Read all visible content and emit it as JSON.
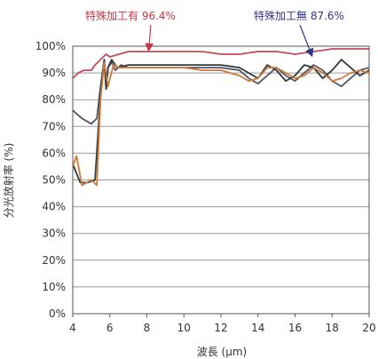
{
  "chart_data": {
    "type": "line",
    "title": "",
    "xlabel": "波長 (μm)",
    "ylabel": "分光放射率 (%)",
    "xlim": [
      4,
      20
    ],
    "ylim": [
      0,
      100
    ],
    "x_ticks": [
      "4",
      "6",
      "8",
      "10",
      "12",
      "14",
      "16",
      "18",
      "20"
    ],
    "y_ticks": [
      "0%",
      "10%",
      "20%",
      "30%",
      "40%",
      "50%",
      "60%",
      "70%",
      "80%",
      "90%",
      "100%"
    ],
    "grid": true,
    "annotations": [
      {
        "text": "特殊加工有 96.4%",
        "color": "#cc3344",
        "target": [
          8.1,
          98
        ]
      },
      {
        "text": "特殊加工無 87.6%",
        "color": "#333388",
        "target": [
          16.9,
          96
        ]
      }
    ],
    "series": [
      {
        "color": "#c44a5a",
        "x": [
          4.0,
          4.3,
          4.6,
          5.0,
          5.2,
          5.5,
          5.8,
          6.0,
          6.5,
          7.0,
          8.0,
          9.0,
          10.0,
          11.0,
          12.0,
          13.0,
          14.0,
          15.0,
          16.0,
          17.0,
          18.0,
          19.0,
          20.0
        ],
        "y": [
          88,
          90,
          91,
          91,
          93,
          95,
          97,
          96,
          97,
          98,
          98,
          98,
          98,
          98,
          97,
          97,
          98,
          98,
          97,
          98,
          99,
          99,
          99
        ]
      },
      {
        "color": "#555566",
        "x": [
          4.0,
          4.5,
          5.0,
          5.3,
          5.5,
          5.7,
          5.8,
          5.9,
          6.1,
          6.3,
          6.6,
          7.0,
          8.0,
          9.0,
          10.0,
          11.0,
          12.0,
          13.0,
          13.5,
          14.0,
          14.5,
          15.0,
          15.5,
          16.0,
          16.5,
          17.0,
          17.5,
          18.0,
          18.5,
          19.0,
          19.5,
          20.0
        ],
        "y": [
          76,
          73,
          71,
          73,
          85,
          95,
          84,
          92,
          94,
          91,
          93,
          92,
          92,
          92,
          92,
          92,
          92,
          91,
          88,
          86,
          89,
          92,
          89,
          87,
          90,
          93,
          91,
          87,
          85,
          88,
          91,
          92
        ]
      },
      {
        "color": "#2f3a3a",
        "x": [
          4.0,
          4.4,
          4.8,
          5.2,
          5.5,
          5.7,
          5.8,
          5.9,
          6.1,
          6.4,
          7.0,
          8.0,
          9.0,
          10.0,
          11.0,
          12.0,
          13.0,
          14.0,
          14.5,
          15.0,
          15.5,
          16.0,
          16.5,
          17.0,
          17.5,
          18.0,
          18.5,
          19.0,
          19.5,
          20.0
        ],
        "y": [
          56,
          49,
          49,
          50,
          82,
          95,
          84,
          92,
          95,
          92,
          93,
          93,
          93,
          93,
          93,
          93,
          92,
          88,
          93,
          91,
          87,
          89,
          93,
          92,
          88,
          91,
          95,
          92,
          89,
          91
        ]
      },
      {
        "color": "#d07a3c",
        "x": [
          4.0,
          4.2,
          4.5,
          5.0,
          5.3,
          5.5,
          5.7,
          5.9,
          6.2,
          6.5,
          7.0,
          8.0,
          9.0,
          10.0,
          11.0,
          12.0,
          13.0,
          13.5,
          14.0,
          14.5,
          15.0,
          15.5,
          16.0,
          16.5,
          17.0,
          17.5,
          18.0,
          18.5,
          19.0,
          19.5,
          20.0
        ],
        "y": [
          55,
          59,
          48,
          50,
          48,
          80,
          94,
          85,
          93,
          92,
          92,
          92,
          92,
          92,
          91,
          91,
          89,
          87,
          88,
          92,
          92,
          90,
          88,
          89,
          92,
          90,
          87,
          88,
          90,
          91,
          90
        ]
      }
    ]
  }
}
